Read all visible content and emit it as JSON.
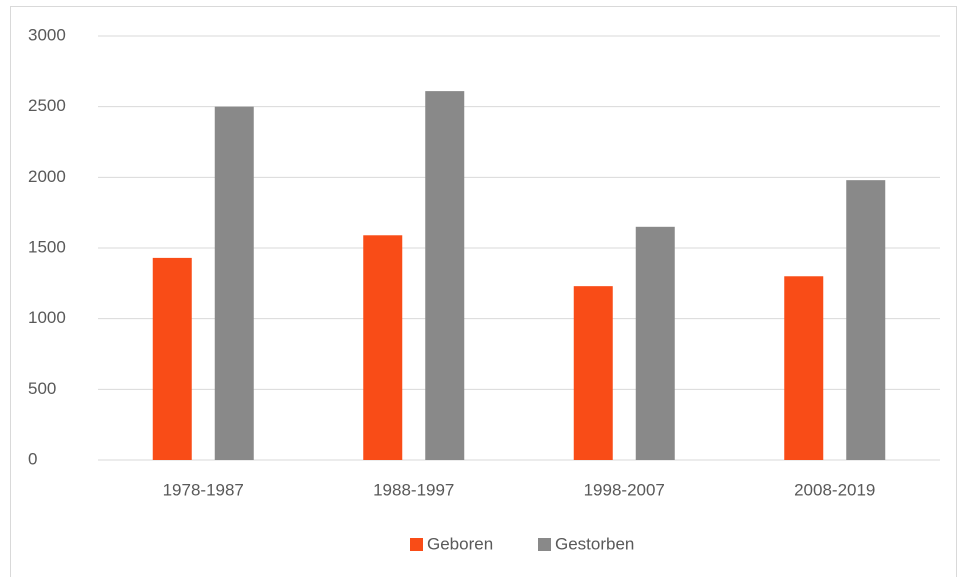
{
  "chart_data": {
    "type": "bar",
    "categories": [
      "1978-1987",
      "1988-1997",
      "1998-2007",
      "2008-2019"
    ],
    "series": [
      {
        "name": "Geboren",
        "color": "#f94c17",
        "values": [
          1430,
          1590,
          1230,
          1300
        ]
      },
      {
        "name": "Gestorben",
        "color": "#898989",
        "values": [
          2500,
          2610,
          1650,
          1980
        ]
      }
    ],
    "ylim": [
      0,
      3000
    ],
    "yticks": [
      0,
      500,
      1000,
      1500,
      2000,
      2500,
      3000
    ],
    "grid": true,
    "legend": "bottom"
  }
}
